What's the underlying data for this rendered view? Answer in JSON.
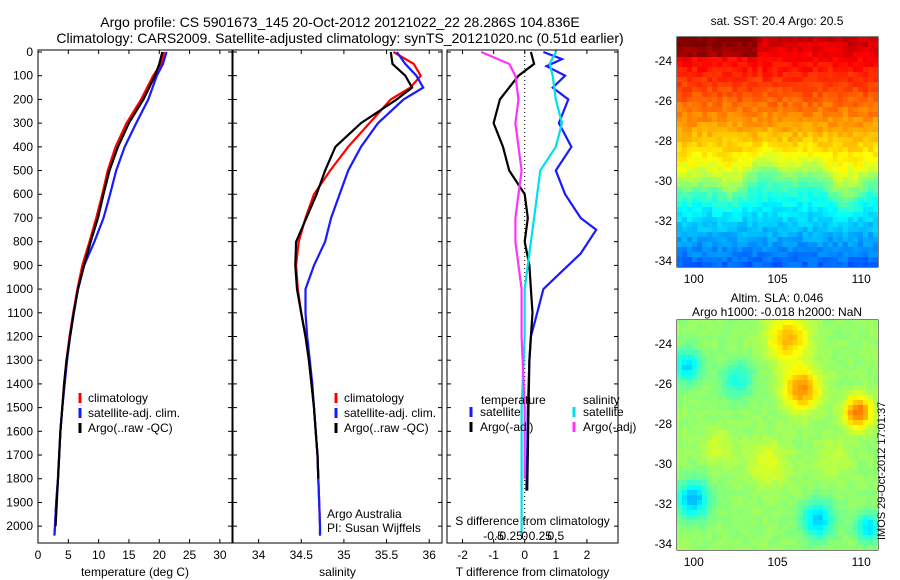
{
  "header": {
    "title_line1": "Argo profile: CS 5901673_145 20-Oct-2012 20121022_22 28.286S 104.836E",
    "title_line2": "Climatology: CARS2009. Satellite-adjusted climatology: synTS_20121020.nc (0.51d earlier)"
  },
  "colors": {
    "climatology": "#ff0000",
    "satellite": "#1a1aff",
    "argo": "#000000",
    "salinity_satellite": "#00e0e8",
    "salinity_argo": "#ff33ff"
  },
  "chart_data": [
    {
      "type": "line",
      "id": "temperature",
      "xlabel": "temperature (deg C)",
      "xlim": [
        0,
        32
      ],
      "ylim": [
        2050,
        0
      ],
      "xticks": [
        0,
        5,
        10,
        15,
        20,
        25,
        30
      ],
      "yticks": [
        0,
        100,
        200,
        300,
        400,
        500,
        600,
        700,
        800,
        900,
        1000,
        1100,
        1200,
        1300,
        1400,
        1500,
        1600,
        1700,
        1800,
        1900,
        2000
      ],
      "series": [
        {
          "name": "climatology",
          "color": "#ff0000",
          "points": [
            [
              20.8,
              0
            ],
            [
              20.3,
              50
            ],
            [
              19.0,
              100
            ],
            [
              17.0,
              200
            ],
            [
              14.6,
              300
            ],
            [
              12.8,
              400
            ],
            [
              11.5,
              500
            ],
            [
              10.6,
              600
            ],
            [
              9.6,
              700
            ],
            [
              8.5,
              800
            ],
            [
              7.3,
              900
            ],
            [
              6.5,
              1000
            ],
            [
              5.8,
              1100
            ],
            [
              5.2,
              1200
            ],
            [
              4.7,
              1300
            ],
            [
              4.3,
              1400
            ],
            [
              4.0,
              1500
            ],
            [
              3.7,
              1600
            ],
            [
              3.5,
              1700
            ],
            [
              3.3,
              1800
            ],
            [
              3.0,
              1900
            ],
            [
              2.8,
              2000
            ],
            [
              2.7,
              2040
            ]
          ]
        },
        {
          "name": "satellite-adj. clim.",
          "color": "#1a1aff",
          "points": [
            [
              21.2,
              0
            ],
            [
              20.6,
              50
            ],
            [
              19.6,
              100
            ],
            [
              18.2,
              200
            ],
            [
              16.2,
              300
            ],
            [
              14.3,
              400
            ],
            [
              12.9,
              500
            ],
            [
              11.9,
              600
            ],
            [
              10.8,
              700
            ],
            [
              9.3,
              800
            ],
            [
              7.6,
              900
            ],
            [
              6.6,
              1000
            ],
            [
              5.9,
              1100
            ],
            [
              5.3,
              1200
            ],
            [
              4.8,
              1300
            ],
            [
              4.4,
              1400
            ],
            [
              4.0,
              1500
            ],
            [
              3.7,
              1600
            ],
            [
              3.5,
              1700
            ],
            [
              3.3,
              1800
            ],
            [
              3.0,
              1900
            ],
            [
              2.8,
              2000
            ],
            [
              2.7,
              2040
            ]
          ]
        },
        {
          "name": "Argo(..raw -QC)",
          "color": "#000000",
          "points": [
            [
              20.5,
              0
            ],
            [
              20.0,
              50
            ],
            [
              19.3,
              100
            ],
            [
              17.4,
              200
            ],
            [
              15.0,
              300
            ],
            [
              13.2,
              400
            ],
            [
              11.8,
              500
            ],
            [
              10.8,
              600
            ],
            [
              9.9,
              700
            ],
            [
              8.7,
              800
            ],
            [
              7.6,
              900
            ],
            [
              6.6,
              1000
            ],
            [
              5.9,
              1100
            ],
            [
              5.3,
              1200
            ],
            [
              4.7,
              1300
            ],
            [
              4.3,
              1400
            ],
            [
              4.0,
              1500
            ],
            [
              3.7,
              1600
            ],
            [
              3.5,
              1700
            ],
            [
              3.3,
              1800
            ],
            [
              3.1,
              1900
            ],
            [
              2.9,
              2000
            ]
          ]
        }
      ],
      "legend": [
        "climatology",
        "satellite-adj. clim.",
        "Argo(..raw -QC)"
      ]
    },
    {
      "type": "line",
      "id": "salinity",
      "xlabel": "salinity",
      "xlim": [
        33.7,
        36.15
      ],
      "ylim": [
        2050,
        0
      ],
      "xticks": [
        34,
        34.5,
        35,
        35.5,
        36
      ],
      "series": [
        {
          "name": "climatology",
          "color": "#ff0000",
          "points": [
            [
              35.58,
              0
            ],
            [
              35.82,
              50
            ],
            [
              35.9,
              100
            ],
            [
              35.78,
              150
            ],
            [
              35.55,
              200
            ],
            [
              35.3,
              300
            ],
            [
              35.05,
              400
            ],
            [
              34.84,
              500
            ],
            [
              34.65,
              600
            ],
            [
              34.55,
              700
            ],
            [
              34.47,
              800
            ],
            [
              34.44,
              900
            ],
            [
              34.46,
              1000
            ],
            [
              34.5,
              1100
            ],
            [
              34.55,
              1200
            ],
            [
              34.59,
              1300
            ],
            [
              34.62,
              1400
            ],
            [
              34.65,
              1500
            ],
            [
              34.67,
              1600
            ],
            [
              34.69,
              1700
            ],
            [
              34.7,
              1800
            ],
            [
              34.71,
              1900
            ],
            [
              34.72,
              2000
            ],
            [
              34.72,
              2040
            ]
          ]
        },
        {
          "name": "satellite-adj. clim.",
          "color": "#1a1aff",
          "points": [
            [
              35.62,
              0
            ],
            [
              35.72,
              50
            ],
            [
              35.85,
              100
            ],
            [
              35.93,
              150
            ],
            [
              35.7,
              200
            ],
            [
              35.4,
              300
            ],
            [
              35.2,
              400
            ],
            [
              35.05,
              500
            ],
            [
              34.95,
              600
            ],
            [
              34.85,
              700
            ],
            [
              34.78,
              800
            ],
            [
              34.65,
              900
            ],
            [
              34.55,
              1000
            ],
            [
              34.55,
              1100
            ],
            [
              34.57,
              1200
            ],
            [
              34.6,
              1300
            ],
            [
              34.63,
              1400
            ],
            [
              34.65,
              1500
            ],
            [
              34.67,
              1600
            ],
            [
              34.69,
              1700
            ],
            [
              34.7,
              1800
            ],
            [
              34.71,
              1900
            ],
            [
              34.72,
              2000
            ],
            [
              34.72,
              2040
            ]
          ]
        },
        {
          "name": "Argo(..raw -QC)",
          "color": "#000000",
          "points": [
            [
              35.55,
              0
            ],
            [
              35.57,
              50
            ],
            [
              35.72,
              100
            ],
            [
              35.8,
              150
            ],
            [
              35.62,
              200
            ],
            [
              35.2,
              300
            ],
            [
              34.9,
              400
            ],
            [
              34.78,
              500
            ],
            [
              34.68,
              600
            ],
            [
              34.56,
              700
            ],
            [
              34.44,
              800
            ],
            [
              34.43,
              900
            ],
            [
              34.45,
              1000
            ],
            [
              34.5,
              1100
            ],
            [
              34.55,
              1200
            ],
            [
              34.59,
              1300
            ],
            [
              34.62,
              1400
            ],
            [
              34.65,
              1500
            ],
            [
              34.67,
              1600
            ],
            [
              34.69,
              1700
            ],
            [
              34.7,
              1800
            ]
          ]
        }
      ],
      "legend": [
        "climatology",
        "satellite-adj. clim.",
        "Argo(..raw -QC)"
      ],
      "annotations": [
        "Argo Australia",
        "PI: Susan Wijffels"
      ]
    },
    {
      "type": "line",
      "id": "difference",
      "xlabel": "T difference from climatology",
      "top_xlabel": "S difference from climatology",
      "xlim": [
        -2.5,
        3.0
      ],
      "ylim": [
        2050,
        0
      ],
      "xticks": [
        -2,
        -1,
        0,
        1,
        2
      ],
      "xticks_s": [
        -0.5,
        -0.25,
        0,
        0.25,
        0.5
      ],
      "xticklabels_s": [
        "-0.5",
        "-0.25",
        "0",
        "0.25",
        "0.5"
      ],
      "legend_temperature_header": "temperature",
      "legend_salinity_header": "salinity",
      "series": [
        {
          "name": "satellite",
          "group": "temperature",
          "color": "#1a1aff",
          "points": [
            [
              0.6,
              0
            ],
            [
              1.2,
              30
            ],
            [
              0.7,
              60
            ],
            [
              1.3,
              100
            ],
            [
              0.9,
              150
            ],
            [
              1.4,
              200
            ],
            [
              1.1,
              300
            ],
            [
              1.5,
              400
            ],
            [
              1.0,
              500
            ],
            [
              1.3,
              600
            ],
            [
              1.8,
              700
            ],
            [
              2.3,
              750
            ],
            [
              1.8,
              850
            ],
            [
              1.0,
              950
            ],
            [
              0.6,
              1000
            ],
            [
              0.4,
              1100
            ],
            [
              0.2,
              1200
            ],
            [
              0.15,
              1300
            ],
            [
              0.1,
              1500
            ],
            [
              0.08,
              1700
            ],
            [
              0.05,
              1850
            ]
          ]
        },
        {
          "name": "Argo(-adj)",
          "group": "temperature",
          "color": "#000000",
          "points": [
            [
              0.2,
              0
            ],
            [
              0.3,
              50
            ],
            [
              -0.2,
              100
            ],
            [
              -0.8,
              200
            ],
            [
              -1.0,
              300
            ],
            [
              -0.7,
              400
            ],
            [
              -0.5,
              500
            ],
            [
              0.0,
              600
            ],
            [
              0.1,
              700
            ],
            [
              0.0,
              800
            ],
            [
              0.15,
              900
            ],
            [
              0.2,
              1000
            ],
            [
              0.25,
              1100
            ],
            [
              0.2,
              1200
            ],
            [
              0.15,
              1300
            ],
            [
              0.12,
              1500
            ],
            [
              0.1,
              1700
            ],
            [
              0.08,
              1850
            ]
          ]
        },
        {
          "name": "satellite",
          "group": "salinity",
          "color": "#00e0e8",
          "points": [
            [
              1.0,
              0
            ],
            [
              0.8,
              50
            ],
            [
              0.9,
              100
            ],
            [
              1.0,
              200
            ],
            [
              1.2,
              300
            ],
            [
              1.0,
              400
            ],
            [
              0.5,
              500
            ],
            [
              0.4,
              600
            ],
            [
              0.3,
              700
            ],
            [
              0.2,
              800
            ],
            [
              0.1,
              900
            ],
            [
              0.0,
              1000
            ],
            [
              0.0,
              1200
            ],
            [
              -0.1,
              1500
            ],
            [
              -0.1,
              1800
            ],
            [
              -0.1,
              2040
            ]
          ]
        },
        {
          "name": "Argo(-adj)",
          "group": "salinity",
          "color": "#ff33ff",
          "points": [
            [
              -1.4,
              0
            ],
            [
              -0.5,
              50
            ],
            [
              -0.3,
              100
            ],
            [
              -0.2,
              200
            ],
            [
              -0.3,
              300
            ],
            [
              -0.2,
              400
            ],
            [
              -0.1,
              500
            ],
            [
              -0.2,
              600
            ],
            [
              -0.3,
              700
            ],
            [
              -0.3,
              800
            ],
            [
              -0.2,
              900
            ],
            [
              -0.1,
              1000
            ],
            [
              -0.1,
              1200
            ],
            [
              0.0,
              1500
            ],
            [
              0.0,
              1800
            ]
          ]
        }
      ]
    },
    {
      "type": "heatmap",
      "id": "sst_map",
      "title": "sat. SST: 20.4  Argo: 20.5",
      "xlim": [
        99,
        111
      ],
      "ylim": [
        -34.3,
        -22.8
      ],
      "xticks": [
        100,
        105,
        110
      ],
      "yticks": [
        -24,
        -26,
        -28,
        -30,
        -32,
        -34
      ],
      "marker": [
        104.836,
        -28.286
      ]
    },
    {
      "type": "heatmap",
      "id": "sla_map",
      "title_line1": "Altim. SLA: 0.046",
      "title_line2": "Argo h1000: -0.018 h2000: NaN",
      "xlim": [
        99,
        111
      ],
      "ylim": [
        -34.3,
        -22.8
      ],
      "xticks": [
        100,
        105,
        110
      ],
      "yticks": [
        -24,
        -26,
        -28,
        -30,
        -32,
        -34
      ],
      "marker": [
        104.836,
        -28.286
      ]
    }
  ],
  "footer": {
    "vertical_stamp": "IMOS 29-Oct-2012 17:01:37"
  }
}
